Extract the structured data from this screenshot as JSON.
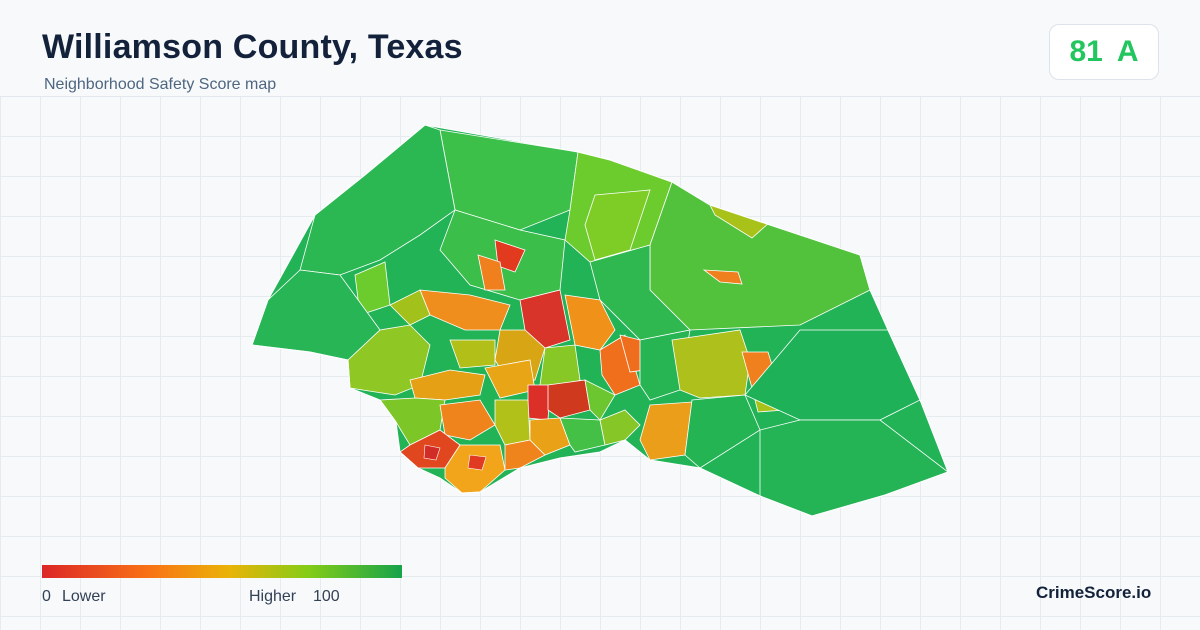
{
  "header": {
    "title": "Williamson County, Texas",
    "subtitle": "Neighborhood Safety Score map"
  },
  "score": {
    "value": "81",
    "grade": "A",
    "color": "#22c55e"
  },
  "legend": {
    "min_value": "0",
    "min_label": "Lower",
    "max_label": "Higher",
    "max_value": "100",
    "colors": [
      "#dc2626",
      "#f97316",
      "#eab308",
      "#84cc16",
      "#16a34a"
    ]
  },
  "brand": "CrimeScore.io"
}
